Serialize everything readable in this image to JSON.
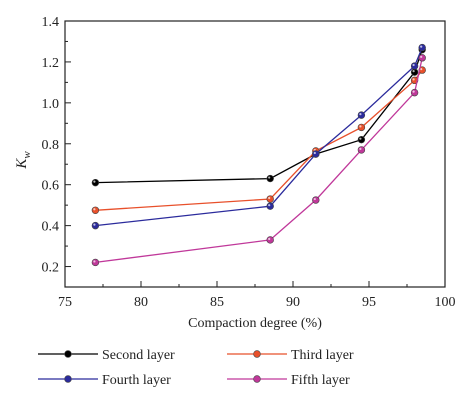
{
  "chart_data": {
    "type": "line",
    "xlabel": "Compaction degree (%)",
    "ylabel": "K",
    "ylabel_subscript": "w",
    "xlim": [
      75,
      100
    ],
    "ylim": [
      0.1,
      1.4
    ],
    "xticks": [
      75,
      80,
      85,
      90,
      95,
      100
    ],
    "yticks": [
      0.2,
      0.4,
      0.6,
      0.8,
      1.0,
      1.2,
      1.4
    ],
    "ytick_labels": [
      "0.2",
      "0.4",
      "0.6",
      "0.8",
      "1.0",
      "1.2",
      "1.4"
    ],
    "grid": false,
    "legend_position": "bottom",
    "series": [
      {
        "name": "Second layer",
        "color": "#000000",
        "x": [
          77,
          88.5,
          91.5,
          94.5,
          98,
          98.5
        ],
        "y": [
          0.61,
          0.63,
          0.75,
          0.82,
          1.15,
          1.26
        ]
      },
      {
        "name": "Third layer",
        "color": "#e8502b",
        "x": [
          77,
          88.5,
          91.5,
          94.5,
          98,
          98.5
        ],
        "y": [
          0.475,
          0.53,
          0.765,
          0.88,
          1.11,
          1.16
        ]
      },
      {
        "name": "Fourth layer",
        "color": "#2b2b9c",
        "x": [
          77,
          88.5,
          91.5,
          94.5,
          98,
          98.5
        ],
        "y": [
          0.4,
          0.495,
          0.75,
          0.94,
          1.18,
          1.27
        ]
      },
      {
        "name": "Fifth layer",
        "color": "#c0389a",
        "x": [
          77,
          88.5,
          91.5,
          94.5,
          98,
          98.5
        ],
        "y": [
          0.22,
          0.33,
          0.525,
          0.77,
          1.05,
          1.22
        ]
      }
    ]
  }
}
